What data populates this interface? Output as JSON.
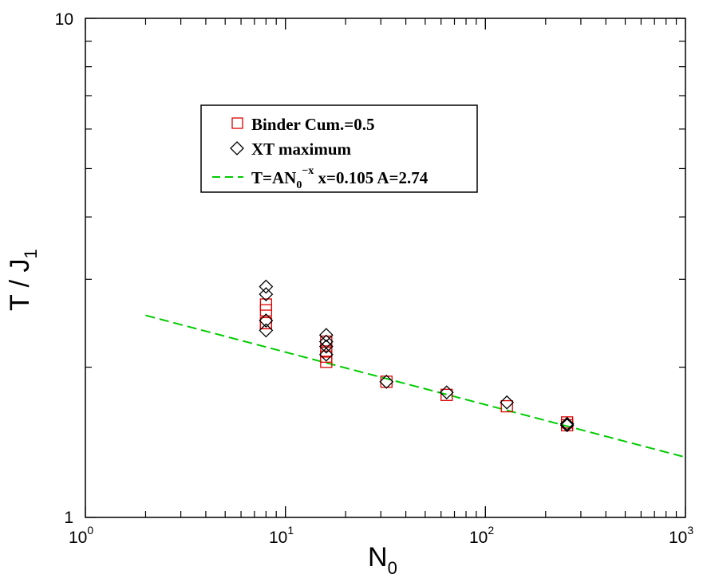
{
  "chart_data": {
    "type": "scatter",
    "x_scale": "log",
    "y_scale": "log",
    "xlim": [
      1,
      1000
    ],
    "ylim": [
      1,
      10
    ],
    "x_ticks": [
      {
        "base": "10",
        "exp": "0"
      },
      {
        "base": "10",
        "exp": "1"
      },
      {
        "base": "10",
        "exp": "2"
      },
      {
        "base": "10",
        "exp": "3"
      }
    ],
    "y_ticks": [
      "1",
      "10"
    ],
    "xlabel": {
      "main": "N",
      "sub": "0"
    },
    "ylabel": {
      "main": "T / J",
      "sub": "1"
    },
    "grid": false,
    "legend_position": "upper-left",
    "colors": {
      "binder": "#dd0000",
      "xt": "#000000",
      "fit": "#00cc00"
    },
    "series": [
      {
        "name": "Binder Cum.=0.5",
        "marker": "square",
        "x": [
          8,
          8,
          8,
          8,
          16,
          16,
          16,
          16,
          32,
          64,
          128,
          256,
          256
        ],
        "y": [
          2.45,
          2.6,
          2.67,
          2.45,
          2.25,
          2.15,
          2.1,
          2.05,
          1.87,
          1.76,
          1.67,
          1.55,
          1.53
        ]
      },
      {
        "name": "XT maximum",
        "marker": "diamond",
        "x": [
          8,
          8,
          8,
          8,
          16,
          16,
          16,
          16,
          32,
          64,
          128,
          256,
          256
        ],
        "y": [
          2.9,
          2.8,
          2.48,
          2.37,
          2.32,
          2.25,
          2.2,
          2.12,
          1.87,
          1.78,
          1.7,
          1.53,
          1.54
        ]
      },
      {
        "name": "T=AN0^-x x=0.105 A=2.74",
        "line": "dashed",
        "x": [
          2,
          1000
        ],
        "y": [
          2.54,
          1.32
        ]
      }
    ],
    "legend": {
      "entries": [
        {
          "text": "Binder Cum.=0.5"
        },
        {
          "text": "XT maximum"
        },
        {
          "pre": "T=AN",
          "sub": "0",
          "sup": "−x",
          "post": " x=0.105 A=2.74"
        }
      ]
    }
  }
}
